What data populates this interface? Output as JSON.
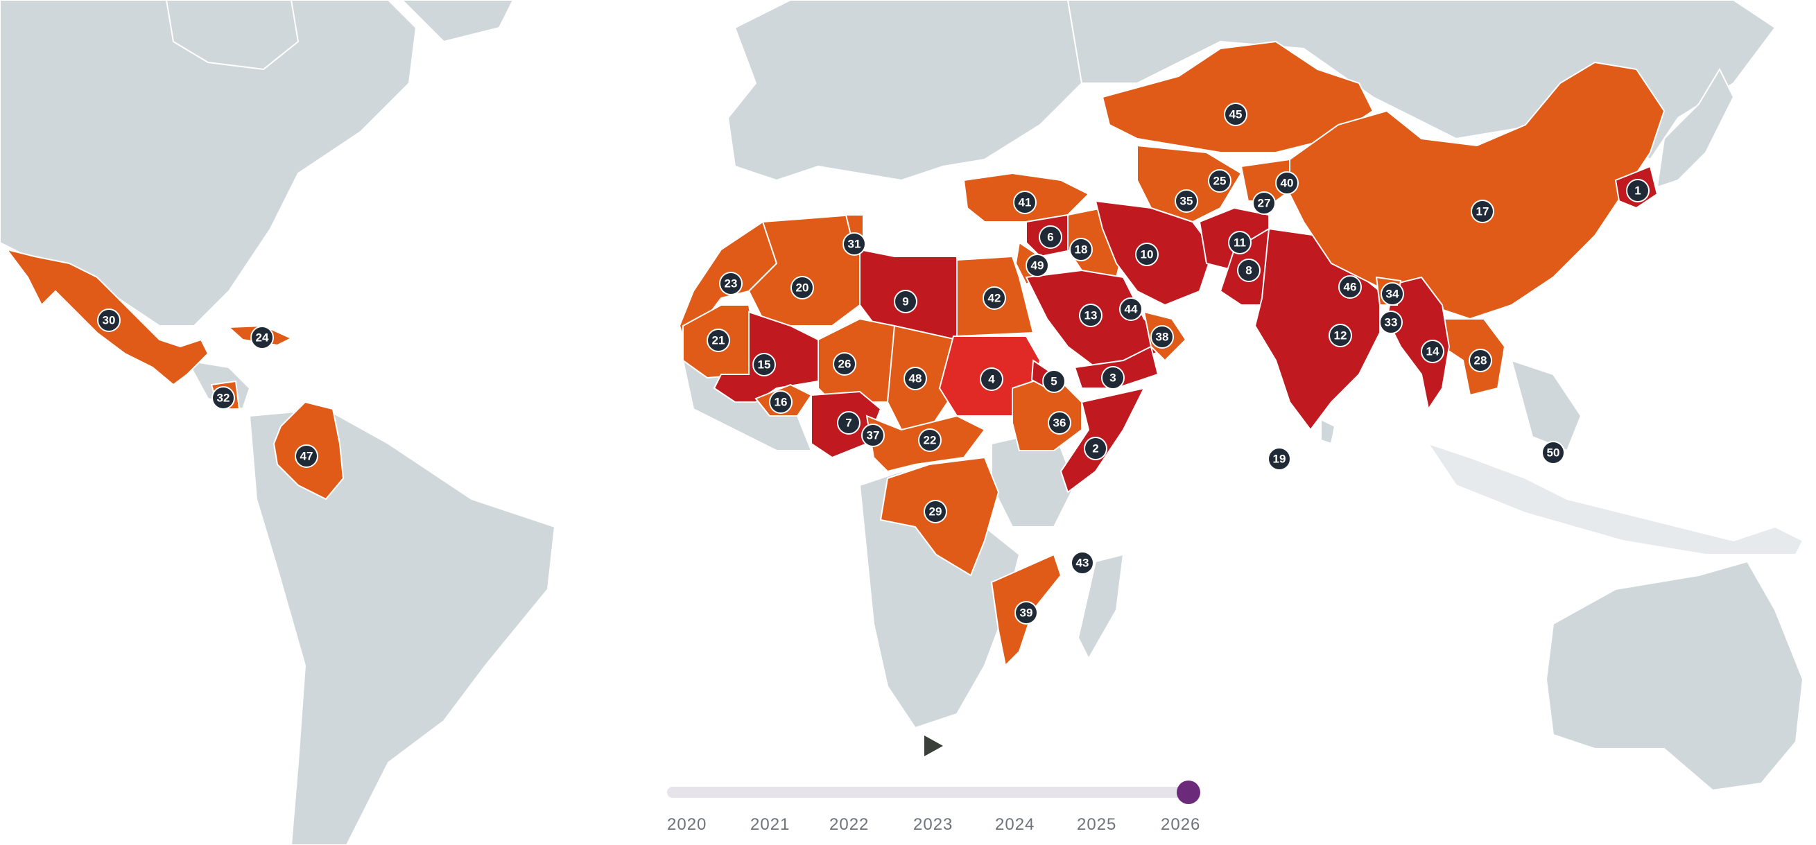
{
  "map": {
    "legend_colors": {
      "extreme": "#c0191f",
      "very_high": "#e05a18",
      "highlight": "#e12a26",
      "other_land": "#d0d7db",
      "marker": "#1f2a36"
    },
    "rank_markers": [
      "1",
      "2",
      "3",
      "4",
      "5",
      "6",
      "7",
      "8",
      "9",
      "10",
      "11",
      "12",
      "13",
      "14",
      "15",
      "16",
      "17",
      "18",
      "19",
      "20",
      "21",
      "22",
      "23",
      "24",
      "25",
      "26",
      "27",
      "28",
      "29",
      "30",
      "31",
      "32",
      "33",
      "34",
      "35",
      "36",
      "37",
      "38",
      "39",
      "40",
      "41",
      "42",
      "43",
      "44",
      "45",
      "46",
      "47",
      "48",
      "49",
      "50"
    ]
  },
  "timeline": {
    "play_icon": "play-icon",
    "selected_year": "2026",
    "years": [
      "2020",
      "2021",
      "2022",
      "2023",
      "2024",
      "2025",
      "2026"
    ],
    "accent_color": "#6b2a7a"
  }
}
